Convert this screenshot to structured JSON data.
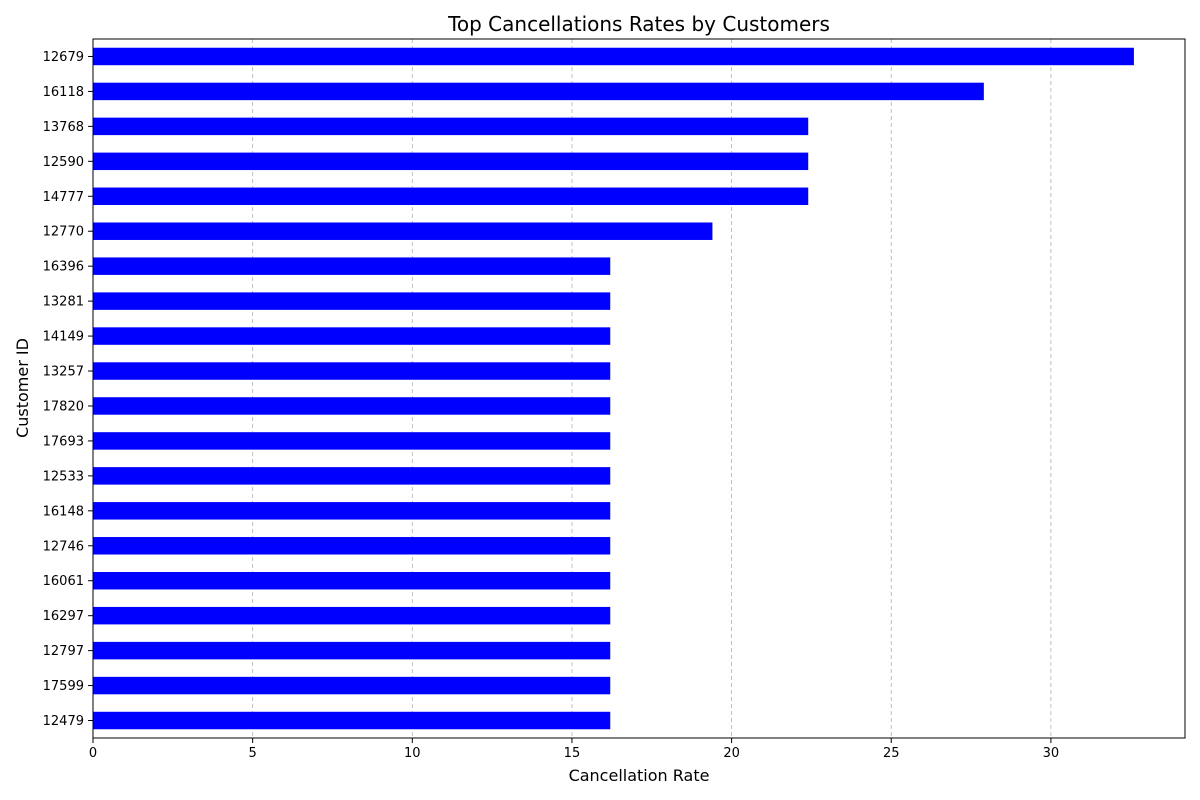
{
  "chart_data": {
    "type": "bar",
    "orientation": "horizontal",
    "title": "Top Cancellations Rates by Customers",
    "xlabel": "Cancellation Rate",
    "ylabel": "Customer ID",
    "xlim": [
      0,
      34.2
    ],
    "xticks": [
      0,
      5,
      10,
      15,
      20,
      25,
      30
    ],
    "grid": "x-axis dashed",
    "bar_color": "#0000ff",
    "categories": [
      "12679",
      "16118",
      "13768",
      "12590",
      "14777",
      "12770",
      "16396",
      "13281",
      "14149",
      "13257",
      "17820",
      "17693",
      "12533",
      "16148",
      "12746",
      "16061",
      "16297",
      "12797",
      "17599",
      "12479"
    ],
    "values": [
      32.6,
      27.9,
      22.4,
      22.4,
      22.4,
      19.4,
      16.2,
      16.2,
      16.2,
      16.2,
      16.2,
      16.2,
      16.2,
      16.2,
      16.2,
      16.2,
      16.2,
      16.2,
      16.2,
      16.2
    ]
  }
}
